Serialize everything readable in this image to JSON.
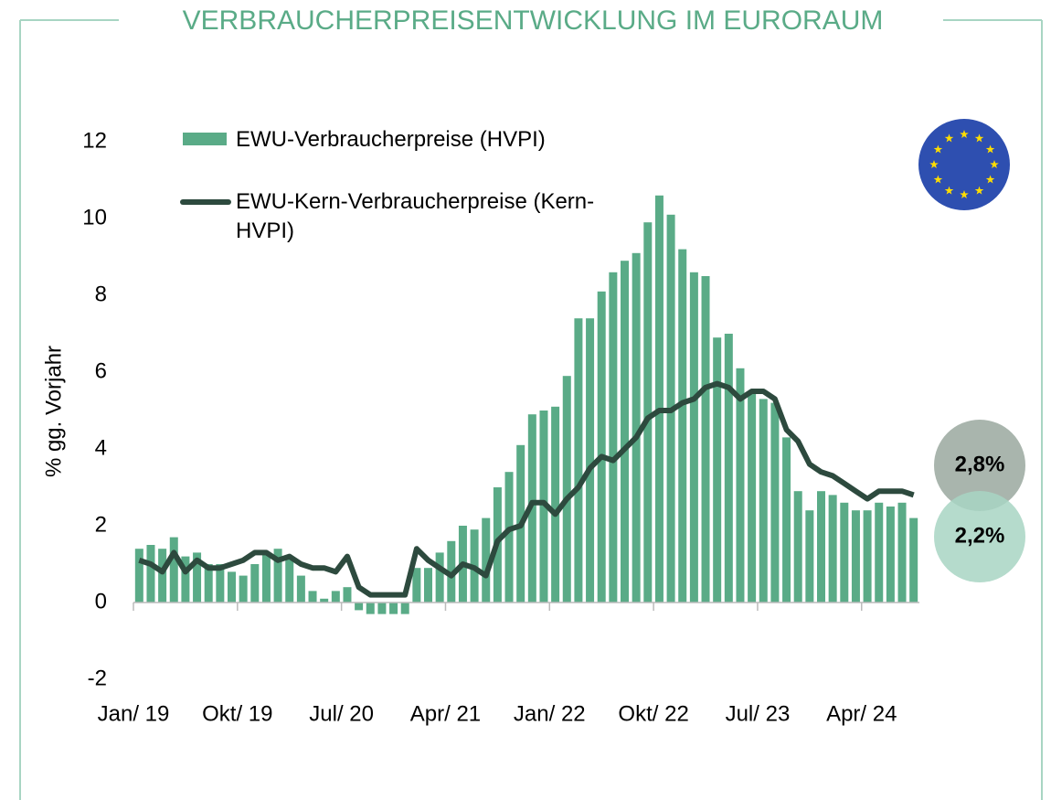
{
  "chart_data": {
    "type": "bar-line",
    "title": "VERBRAUCHERPREISENTWICKLUNG IM EURORAUM",
    "y_label": "% gg. Vorjahr",
    "categories": [
      "Jan/ 19",
      null,
      null,
      null,
      null,
      null,
      null,
      null,
      null,
      "Okt/ 19",
      null,
      null,
      null,
      null,
      null,
      null,
      null,
      null,
      "Jul/ 20",
      null,
      null,
      null,
      null,
      null,
      null,
      null,
      null,
      "Apr/ 21",
      null,
      null,
      null,
      null,
      null,
      null,
      null,
      null,
      "Jan/ 22",
      null,
      null,
      null,
      null,
      null,
      null,
      null,
      null,
      "Okt/ 22",
      null,
      null,
      null,
      null,
      null,
      null,
      null,
      null,
      "Jul/ 23",
      null,
      null,
      null,
      null,
      null,
      null,
      null,
      null,
      "Apr/ 24",
      null,
      null,
      null,
      null
    ],
    "series": [
      {
        "name": "EWU-Verbraucherpreise (HVPI)",
        "type": "bar",
        "color": "#5aab87",
        "values": [
          1.4,
          1.5,
          1.4,
          1.7,
          1.2,
          1.3,
          1.0,
          1.0,
          0.8,
          0.7,
          1.0,
          1.3,
          1.4,
          1.2,
          0.7,
          0.3,
          0.1,
          0.3,
          0.4,
          -0.2,
          -0.3,
          -0.3,
          -0.3,
          -0.3,
          0.9,
          0.9,
          1.3,
          1.6,
          2.0,
          1.9,
          2.2,
          3.0,
          3.4,
          4.1,
          4.9,
          5.0,
          5.1,
          5.9,
          7.4,
          7.4,
          8.1,
          8.6,
          8.9,
          9.1,
          9.9,
          10.6,
          10.1,
          9.2,
          8.6,
          8.5,
          6.9,
          7.0,
          6.1,
          5.5,
          5.3,
          5.2,
          4.3,
          2.9,
          2.4,
          2.9,
          2.8,
          2.6,
          2.4,
          2.4,
          2.6,
          2.5,
          2.6,
          2.2
        ]
      },
      {
        "name": "EWU-Kern-Verbraucherpreise (Kern-HVPI)",
        "type": "line",
        "color": "#2d4a3e",
        "values": [
          1.1,
          1.0,
          0.8,
          1.3,
          0.8,
          1.1,
          0.9,
          0.9,
          1.0,
          1.1,
          1.3,
          1.3,
          1.1,
          1.2,
          1.0,
          0.9,
          0.9,
          0.8,
          1.2,
          0.4,
          0.2,
          0.2,
          0.2,
          0.2,
          1.4,
          1.1,
          0.9,
          0.7,
          1.0,
          0.9,
          0.7,
          1.6,
          1.9,
          2.0,
          2.6,
          2.6,
          2.3,
          2.7,
          3.0,
          3.5,
          3.8,
          3.7,
          4.0,
          4.3,
          4.8,
          5.0,
          5.0,
          5.2,
          5.3,
          5.6,
          5.7,
          5.6,
          5.3,
          5.5,
          5.5,
          5.3,
          4.5,
          4.2,
          3.6,
          3.4,
          3.3,
          3.1,
          2.9,
          2.7,
          2.9,
          2.9,
          2.9,
          2.8
        ]
      }
    ],
    "annotations": [
      {
        "text": "2,8%",
        "color": "#9aa89f"
      },
      {
        "text": "2,2%",
        "color": "#a8d5c3"
      }
    ],
    "ylim": [
      -2,
      12
    ],
    "yticks": [
      -2,
      0,
      2,
      4,
      6,
      8,
      10,
      12
    ]
  }
}
